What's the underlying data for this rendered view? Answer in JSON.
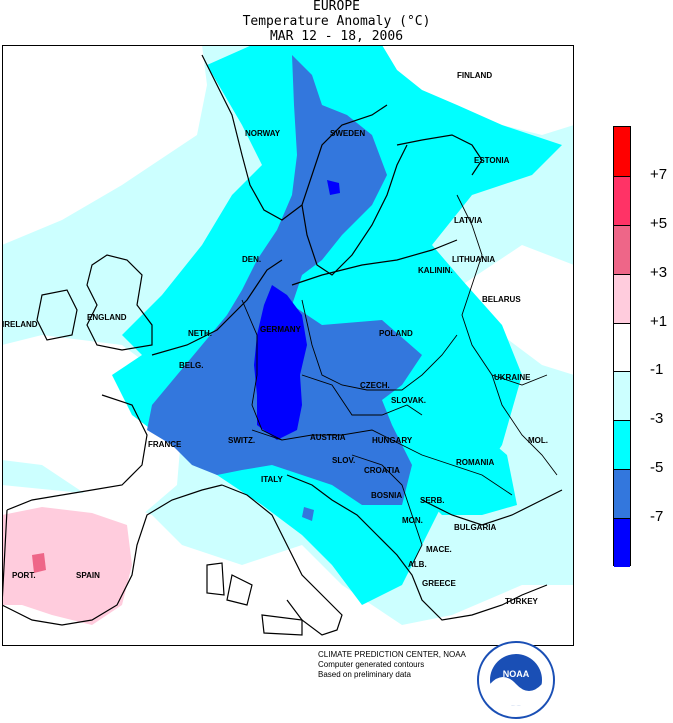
{
  "header": {
    "region": "EUROPE",
    "variable": "Temperature Anomaly (°C)",
    "period": "MAR 12 - 18, 2006"
  },
  "legend": {
    "labels": [
      "+7",
      "+5",
      "+3",
      "+1",
      "-1",
      "-3",
      "-5",
      "-7"
    ],
    "colors": [
      "#ff0000",
      "#ff3366",
      "#ee6688",
      "#ffccdd",
      "#ffffff",
      "#ccffff",
      "#00ffff",
      "#3377dd",
      "#0000ff"
    ]
  },
  "countries": {
    "finland": "FINLAND",
    "norway": "NORWAY",
    "sweden": "SWEDEN",
    "estonia": "ESTONIA",
    "latvia": "LATVIA",
    "lithuania": "LITHUANIA",
    "kalinin": "KALININ.",
    "belarus": "BELARUS",
    "den": "DEN.",
    "ireland": "IRELAND",
    "england": "ENGLAND",
    "neth": "NETH.",
    "germany": "GERMANY",
    "poland": "POLAND",
    "belg": "BELG.",
    "czech": "CZECH.",
    "slovak": "SLOVAK.",
    "ukraine": "UKRAINE",
    "france": "FRANCE",
    "switz": "SWITZ.",
    "austria": "AUSTRIA",
    "hungary": "HUNGARY",
    "mol": "MOL.",
    "slov": "SLOV.",
    "romania": "ROMANIA",
    "croatia": "CROATIA",
    "italy": "ITALY",
    "bosnia": "BOSNIA",
    "serb": "SERB.",
    "mon": "MON.",
    "bulgaria": "BULGARIA",
    "mace": "MACE.",
    "alb": "ALB.",
    "port": "PORT.",
    "spain": "SPAIN",
    "greece": "GREECE",
    "turkey": "TURKEY"
  },
  "credits": {
    "line1": "CLIMATE PREDICTION CENTER, NOAA",
    "line2": "Computer generated contours",
    "line3": "Based on preliminary data",
    "logo": "NOAA"
  }
}
